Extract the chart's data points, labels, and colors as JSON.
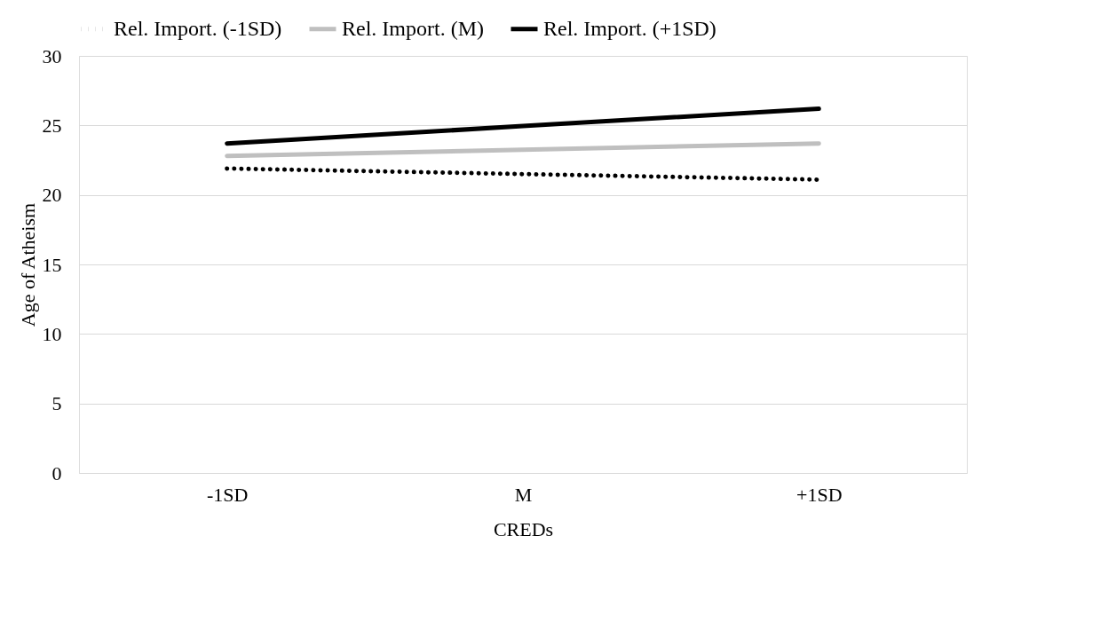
{
  "chart_data": {
    "type": "line",
    "xlabel": "CREDs",
    "ylabel": "Age of Atheism",
    "categories": [
      "-1SD",
      "M",
      "+1SD"
    ],
    "series": [
      {
        "name": "Rel. Import. (-1SD)",
        "color": "#000000",
        "line_style": "dotted",
        "values": [
          21.9,
          21.5,
          21.1
        ]
      },
      {
        "name": "Rel. Import. (M)",
        "color": "#bfbfbf",
        "line_style": "solid",
        "values": [
          22.8,
          23.25,
          23.7
        ]
      },
      {
        "name": "Rel. Import. (+1SD)",
        "color": "#000000",
        "line_style": "solid",
        "values": [
          23.7,
          24.95,
          26.2
        ]
      }
    ],
    "ylim": [
      0,
      30
    ],
    "yticks": [
      0,
      5,
      10,
      15,
      20,
      25,
      30
    ],
    "grid": "y",
    "legend": "top"
  }
}
